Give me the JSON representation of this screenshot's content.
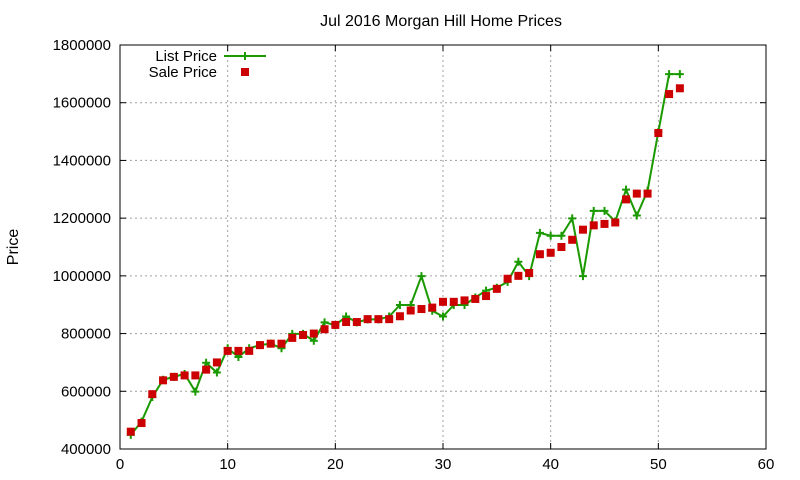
{
  "chart_data": {
    "type": "line",
    "title": "Jul 2016 Morgan Hill Home Prices",
    "xlabel": "",
    "ylabel": "Price",
    "xlim": [
      0,
      60
    ],
    "ylim": [
      400000,
      1800000
    ],
    "x_ticks": [
      "0",
      "10",
      "20",
      "30",
      "40",
      "50",
      "60"
    ],
    "y_ticks": [
      "400000",
      "600000",
      "800000",
      "1000000",
      "1200000",
      "1400000",
      "1600000",
      "1800000"
    ],
    "grid": true,
    "legend_position": "top-left",
    "colors": {
      "list_price": "#1a9a00",
      "sale_price": "#cc0000"
    },
    "x": [
      1,
      2,
      3,
      4,
      5,
      6,
      7,
      8,
      9,
      10,
      11,
      12,
      13,
      14,
      15,
      16,
      17,
      18,
      19,
      20,
      21,
      22,
      23,
      24,
      25,
      26,
      27,
      28,
      29,
      30,
      31,
      32,
      33,
      34,
      35,
      36,
      37,
      38,
      39,
      40,
      41,
      42,
      43,
      44,
      45,
      46,
      47,
      48,
      49,
      50,
      51,
      52
    ],
    "series": [
      {
        "name": "List Price",
        "style": "line-plus",
        "values": [
          449000,
          495000,
          580000,
          640000,
          650000,
          660000,
          599000,
          699000,
          665000,
          749000,
          719000,
          749000,
          760000,
          765000,
          749000,
          799000,
          799000,
          775000,
          839000,
          829000,
          859000,
          839000,
          849000,
          849000,
          859000,
          899000,
          899000,
          999000,
          879000,
          859000,
          899000,
          899000,
          925000,
          949000,
          959000,
          979000,
          1049000,
          999000,
          1149000,
          1139000,
          1139000,
          1199000,
          999000,
          1225000,
          1225000,
          1189000,
          1299000,
          1209000,
          1295000,
          1499000,
          1699000,
          1699000
        ]
      },
      {
        "name": "Sale Price",
        "style": "square-markers",
        "values": [
          460000,
          490000,
          590000,
          638000,
          650000,
          655000,
          655000,
          675000,
          700000,
          740000,
          740000,
          740000,
          760000,
          765000,
          765000,
          785000,
          795000,
          800000,
          815000,
          830000,
          840000,
          840000,
          850000,
          850000,
          850000,
          860000,
          880000,
          885000,
          890000,
          910000,
          910000,
          915000,
          920000,
          930000,
          955000,
          990000,
          1000000,
          1010000,
          1075000,
          1080000,
          1100000,
          1125000,
          1160000,
          1175000,
          1180000,
          1185000,
          1265000,
          1285000,
          1285000,
          1495000,
          1630000,
          1650000
        ]
      }
    ]
  }
}
